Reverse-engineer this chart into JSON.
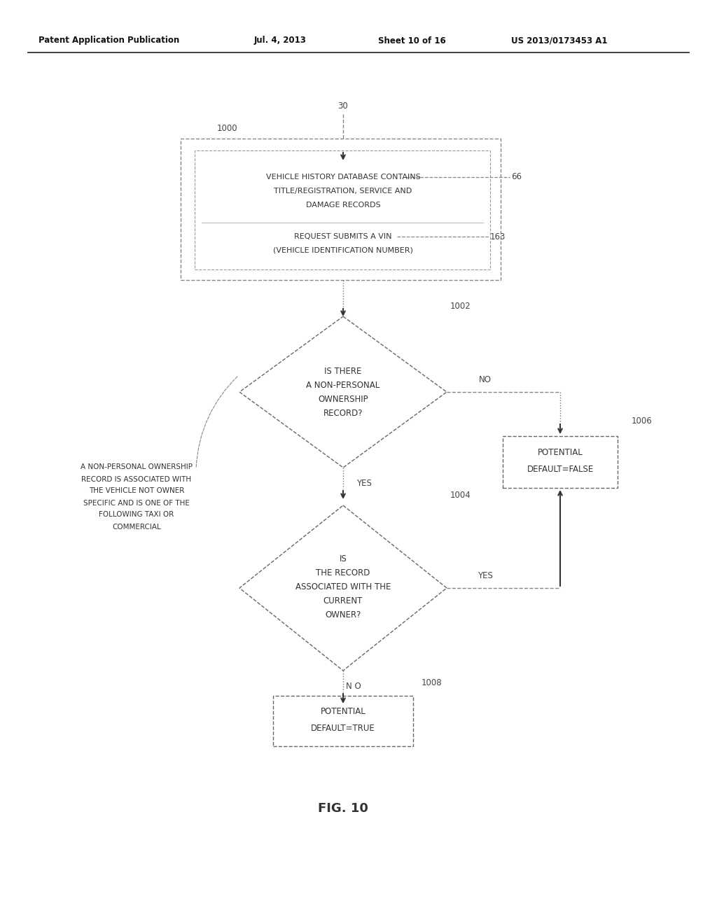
{
  "bg_color": "#ffffff",
  "header_line1": "Patent Application Publication",
  "header_line2": "Jul. 4, 2013",
  "header_line3": "Sheet 10 of 16",
  "header_line4": "US 2013/0173453 A1",
  "fig_label": "FIG. 10",
  "top_box_label": "1000",
  "top_box_arrow_label": "30",
  "top_box_line1": "VEHICLE HISTORY DATABASE CONTAINS",
  "top_box_line2": "TITLE/REGISTRATION, SERVICE AND",
  "top_box_line3": "DAMAGE RECORDS",
  "top_box_line4": "REQUEST SUBMITS A VIN",
  "top_box_line5": "(VEHICLE IDENTIFICATION NUMBER)",
  "top_box_ref1": "66",
  "top_box_ref2": "163",
  "diamond1_label": "1002",
  "diamond1_line1": "IS THERE",
  "diamond1_line2": "A NON-PERSONAL",
  "diamond1_line3": "OWNERSHIP",
  "diamond1_line4": "RECORD?",
  "diamond1_no": "NO",
  "diamond1_yes": "YES",
  "diamond2_label": "1004",
  "diamond2_line1": "IS",
  "diamond2_line2": "THE RECORD",
  "diamond2_line3": "ASSOCIATED WITH THE",
  "diamond2_line4": "CURRENT",
  "diamond2_line5": "OWNER?",
  "diamond2_no": "N O",
  "diamond2_yes": "YES",
  "right_box_label": "1006",
  "right_box_line1": "POTENTIAL",
  "right_box_line2": "DEFAULT=FALSE",
  "bottom_box_label": "1008",
  "bottom_box_line1": "POTENTIAL",
  "bottom_box_line2": "DEFAULT=TRUE",
  "left_annotation_line1": "A NON-PERSONAL OWNERSHIP",
  "left_annotation_line2": "RECORD IS ASSOCIATED WITH",
  "left_annotation_line3": "THE VEHICLE NOT OWNER",
  "left_annotation_line4": "SPECIFIC AND IS ONE OF THE",
  "left_annotation_line5": "FOLLOWING TAXI OR",
  "left_annotation_line6": "COMMERCIAL"
}
